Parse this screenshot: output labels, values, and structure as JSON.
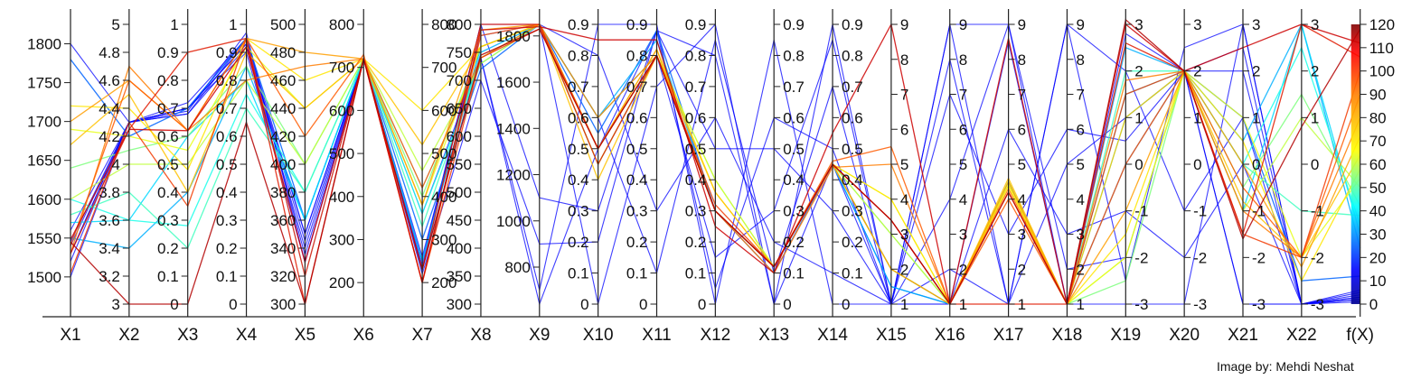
{
  "credit": "Image by: Mehdi Neshat",
  "chart_data": {
    "type": "parallel_coordinates",
    "title": "",
    "axes": [
      {
        "label": "X1",
        "ticks": [
          1500,
          1550,
          1600,
          1650,
          1700,
          1750,
          1800
        ],
        "range": [
          1465,
          1825
        ],
        "tick_side": "left"
      },
      {
        "label": "X2",
        "ticks": [
          3,
          3.2,
          3.4,
          3.6,
          3.8,
          4,
          4.2,
          4.4,
          4.6,
          4.8,
          5
        ],
        "range": [
          3,
          5
        ],
        "tick_side": "left"
      },
      {
        "label": "X3",
        "ticks": [
          0,
          0.1,
          0.2,
          0.3,
          0.4,
          0.5,
          0.6,
          0.7,
          0.8,
          0.9,
          1
        ],
        "range": [
          0,
          1
        ],
        "tick_side": "left"
      },
      {
        "label": "X4",
        "ticks": [
          0,
          0.1,
          0.2,
          0.3,
          0.4,
          0.5,
          0.6,
          0.7,
          0.8,
          0.9,
          1
        ],
        "range": [
          0,
          1
        ],
        "tick_side": "left"
      },
      {
        "label": "X5",
        "ticks": [
          300,
          320,
          340,
          360,
          380,
          400,
          420,
          440,
          460,
          480,
          500
        ],
        "range": [
          300,
          500
        ],
        "tick_side": "left"
      },
      {
        "label": "X6",
        "ticks": [
          200,
          300,
          400,
          500,
          600,
          700,
          800
        ],
        "range": [
          150,
          800
        ],
        "tick_side": "left"
      },
      {
        "label": "X7",
        "ticks": [
          200,
          300,
          400,
          500,
          600,
          700,
          800
        ],
        "range": [
          150,
          800
        ],
        "tick_side": "right"
      },
      {
        "label": "X8",
        "ticks": [
          300,
          350,
          400,
          450,
          500,
          550,
          600,
          650,
          700,
          750,
          800
        ],
        "range": [
          300,
          800
        ],
        "tick_side": "left"
      },
      {
        "label": "X9",
        "ticks": [
          800,
          1000,
          1200,
          1400,
          1600,
          1800
        ],
        "range": [
          640,
          1850
        ],
        "tick_side": "left"
      },
      {
        "label": "X10",
        "ticks": [
          0,
          0.1,
          0.2,
          0.3,
          0.4,
          0.5,
          0.6,
          0.7,
          0.8,
          0.9
        ],
        "range": [
          0,
          0.9
        ],
        "tick_side": "left"
      },
      {
        "label": "X11",
        "ticks": [
          0,
          0.1,
          0.2,
          0.3,
          0.4,
          0.5,
          0.6,
          0.7,
          0.8,
          0.9
        ],
        "range": [
          0,
          0.9
        ],
        "tick_side": "left"
      },
      {
        "label": "X12",
        "ticks": [
          0,
          0.1,
          0.2,
          0.3,
          0.4,
          0.5,
          0.6,
          0.7,
          0.8,
          0.9
        ],
        "range": [
          0,
          0.9
        ],
        "tick_side": "left"
      },
      {
        "label": "X13",
        "ticks": [
          0,
          0.1,
          0.2,
          0.3,
          0.4,
          0.5,
          0.6,
          0.7,
          0.8,
          0.9
        ],
        "range": [
          0,
          0.9
        ],
        "tick_side": "right"
      },
      {
        "label": "X14",
        "ticks": [
          0,
          0.1,
          0.2,
          0.3,
          0.4,
          0.5,
          0.6,
          0.7,
          0.8,
          0.9
        ],
        "range": [
          0,
          0.9
        ],
        "tick_side": "right"
      },
      {
        "label": "X15",
        "ticks": [
          1,
          2,
          3,
          4,
          5,
          6,
          7,
          8,
          9
        ],
        "range": [
          1,
          9
        ],
        "tick_side": "right"
      },
      {
        "label": "X16",
        "ticks": [
          1,
          2,
          3,
          4,
          5,
          6,
          7,
          8,
          9
        ],
        "range": [
          1,
          9
        ],
        "tick_side": "right"
      },
      {
        "label": "X17",
        "ticks": [
          1,
          2,
          3,
          4,
          5,
          6,
          7,
          8,
          9
        ],
        "range": [
          1,
          9
        ],
        "tick_side": "right"
      },
      {
        "label": "X18",
        "ticks": [
          1,
          2,
          3,
          4,
          5,
          6,
          7,
          8,
          9
        ],
        "range": [
          1,
          9
        ],
        "tick_side": "right"
      },
      {
        "label": "X19",
        "ticks": [
          -3,
          -2,
          -1,
          0,
          1,
          2,
          3
        ],
        "range": [
          -3,
          3
        ],
        "tick_side": "right"
      },
      {
        "label": "X20",
        "ticks": [
          -3,
          -2,
          -1,
          0,
          1,
          2,
          3
        ],
        "range": [
          -3,
          3
        ],
        "tick_side": "right"
      },
      {
        "label": "X21",
        "ticks": [
          -3,
          -2,
          -1,
          0,
          1,
          2,
          3
        ],
        "range": [
          -3,
          3
        ],
        "tick_side": "right"
      },
      {
        "label": "X22",
        "ticks": [
          -3,
          -2,
          -1,
          0,
          1,
          2,
          3
        ],
        "range": [
          -3,
          3
        ],
        "tick_side": "right"
      },
      {
        "label": "f(X)",
        "ticks": [
          0,
          10,
          20,
          30,
          40,
          50,
          60,
          70,
          80,
          90,
          100,
          110,
          120
        ],
        "range": [
          0,
          120
        ],
        "tick_side": "right"
      }
    ],
    "series": [
      {
        "color": "#b30000",
        "values": [
          1545,
          3.0,
          0.0,
          0.65,
          300,
          720,
          230,
          745,
          1830,
          0.5,
          0.8,
          0.3,
          0.12,
          0.45,
          3.4,
          1.0,
          4.2,
          1.0,
          3.1,
          2.0,
          -1.6,
          0.8,
          118
        ]
      },
      {
        "color": "#cc0000",
        "values": [
          1548,
          4.25,
          0.62,
          0.92,
          330,
          720,
          200,
          790,
          1840,
          0.85,
          0.85,
          0.25,
          0.1,
          0.55,
          9.0,
          1.0,
          8.6,
          1.0,
          3.0,
          2.0,
          2.5,
          3.0,
          112
        ]
      },
      {
        "color": "#e01a00",
        "values": [
          1530,
          4.25,
          0.9,
          0.95,
          300,
          720,
          230,
          800,
          1850,
          0.45,
          0.8,
          0.3,
          0.12,
          0.45,
          3.4,
          1.0,
          1.0,
          1.0,
          2.6,
          2.0,
          -1.5,
          3.0,
          106
        ]
      },
      {
        "color": "#f23a00",
        "values": [
          1505,
          4.3,
          0.35,
          0.95,
          320,
          720,
          200,
          740,
          1830,
          0.5,
          0.8,
          0.32,
          0.12,
          0.45,
          3.4,
          1.0,
          4.2,
          1.0,
          1.5,
          2.0,
          -1.5,
          -2.0,
          100
        ]
      },
      {
        "color": "#ff5a00",
        "values": [
          1540,
          4.6,
          0.62,
          0.95,
          420,
          730,
          200,
          780,
          1850,
          0.5,
          0.8,
          0.3,
          0.12,
          0.46,
          5.5,
          1.0,
          4.0,
          1.0,
          0.0,
          2.0,
          -0.5,
          -2.0,
          90
        ]
      },
      {
        "color": "#ff7d00",
        "values": [
          1530,
          4.7,
          0.62,
          0.8,
          470,
          720,
          420,
          740,
          1850,
          0.6,
          0.8,
          0.3,
          0.1,
          0.44,
          5.0,
          1.0,
          4.3,
          1.0,
          1.8,
          2.0,
          -1.0,
          -2.0,
          80
        ]
      },
      {
        "color": "#ff9f00",
        "values": [
          1700,
          4.6,
          0.62,
          0.95,
          480,
          720,
          380,
          790,
          1850,
          0.5,
          0.82,
          0.3,
          0.12,
          0.45,
          2.0,
          1.0,
          4.5,
          1.0,
          -1.0,
          2.0,
          0.0,
          -2.2,
          72
        ]
      },
      {
        "color": "#ffc200",
        "values": [
          1670,
          4.5,
          0.4,
          0.9,
          440,
          720,
          520,
          760,
          1850,
          0.4,
          0.8,
          0.36,
          0.12,
          0.45,
          2.0,
          1.0,
          4.6,
          1.0,
          1.0,
          2.0,
          -0.8,
          -2.0,
          64
        ]
      },
      {
        "color": "#ffe600",
        "values": [
          1720,
          4.4,
          0.48,
          0.95,
          460,
          720,
          600,
          760,
          1850,
          0.5,
          0.82,
          0.36,
          0.12,
          0.45,
          4.0,
          1.0,
          4.4,
          1.0,
          -1.5,
          2.0,
          0.5,
          -2.5,
          58
        ]
      },
      {
        "color": "#e8ff1a",
        "values": [
          1690,
          4.2,
          0.55,
          0.92,
          440,
          720,
          380,
          760,
          1850,
          0.45,
          0.8,
          0.4,
          0.12,
          0.45,
          4.0,
          1.0,
          4.4,
          1.0,
          -2.0,
          2.0,
          1.0,
          -2.0,
          54
        ]
      },
      {
        "color": "#c0ff3f",
        "values": [
          1600,
          4.0,
          0.5,
          0.8,
          400,
          720,
          460,
          730,
          1850,
          0.5,
          0.8,
          0.3,
          0.12,
          0.45,
          3.0,
          1.0,
          4.5,
          1.0,
          -2.0,
          2.0,
          -1.0,
          1.0,
          50
        ]
      },
      {
        "color": "#7dff7d",
        "values": [
          1640,
          4.1,
          0.6,
          0.85,
          400,
          720,
          400,
          760,
          1850,
          0.5,
          0.8,
          0.3,
          0.12,
          0.45,
          3.0,
          1.0,
          4.5,
          1.0,
          -2.5,
          2.0,
          -0.5,
          1.5,
          42
        ]
      },
      {
        "color": "#3fffbf",
        "values": [
          1580,
          3.8,
          0.2,
          0.7,
          380,
          720,
          330,
          740,
          1850,
          0.6,
          0.8,
          0.4,
          0.12,
          0.45,
          2.0,
          1.0,
          4.5,
          1.0,
          2.0,
          2.0,
          0.0,
          -1.0,
          38
        ]
      },
      {
        "color": "#1affea",
        "values": [
          1600,
          3.6,
          0.28,
          0.75,
          380,
          720,
          360,
          730,
          1850,
          0.45,
          0.8,
          0.3,
          0.12,
          0.45,
          2.0,
          1.0,
          4.5,
          1.0,
          1.0,
          2.0,
          0.0,
          2.5,
          34
        ]
      },
      {
        "color": "#00d8ff",
        "values": [
          1570,
          3.6,
          0.6,
          0.8,
          360,
          720,
          250,
          760,
          1850,
          0.5,
          0.8,
          0.3,
          0.12,
          0.45,
          2.0,
          1.0,
          4.5,
          1.0,
          1.5,
          2.0,
          -1.0,
          3.0,
          30
        ]
      },
      {
        "color": "#00b0ff",
        "values": [
          1550,
          3.4,
          0.4,
          0.85,
          360,
          720,
          230,
          750,
          1850,
          0.6,
          0.85,
          0.3,
          0.12,
          0.45,
          1.5,
          1.0,
          4.5,
          1.0,
          2.5,
          2.0,
          0.5,
          3.0,
          24
        ]
      },
      {
        "color": "#0064ff",
        "values": [
          1780,
          4.2,
          0.7,
          0.95,
          360,
          720,
          300,
          720,
          1850,
          0.55,
          0.88,
          0.3,
          0.1,
          0.45,
          1.5,
          1.0,
          4.5,
          1.0,
          0.0,
          2.0,
          1.0,
          -2.5,
          12
        ]
      },
      {
        "color": "#0000ff",
        "values": [
          1530,
          4.3,
          0.7,
          0.93,
          350,
          720,
          420,
          740,
          640,
          0.5,
          0.88,
          0.8,
          0.0,
          0.45,
          1.0,
          2.0,
          1.0,
          9.0,
          -2.5,
          2.5,
          3.0,
          -3.0,
          3
        ]
      },
      {
        "color": "#0000ff",
        "values": [
          1500,
          4.3,
          0.68,
          0.95,
          320,
          720,
          260,
          780,
          1850,
          0.0,
          0.7,
          0.9,
          0.0,
          0.9,
          1.0,
          9.0,
          9.0,
          1.0,
          -3.0,
          -3.0,
          3.0,
          -3.0,
          2
        ]
      },
      {
        "color": "#0000ff",
        "values": [
          1530,
          4.3,
          0.7,
          0.9,
          330,
          720,
          360,
          740,
          700,
          0.9,
          0.9,
          0.0,
          0.85,
          0.0,
          1.0,
          1.0,
          8.5,
          1.0,
          2.8,
          2.0,
          -3.0,
          -3.0,
          5
        ]
      },
      {
        "color": "#0000ff",
        "values": [
          1545,
          4.3,
          0.68,
          0.92,
          340,
          720,
          250,
          800,
          1850,
          0.45,
          0.8,
          0.15,
          0.3,
          0.85,
          1.0,
          9.0,
          1.0,
          9.0,
          2.0,
          -1.0,
          1.0,
          -3.0,
          1
        ]
      },
      {
        "color": "#0000ff",
        "values": [
          1800,
          4.3,
          0.72,
          0.95,
          350,
          720,
          230,
          800,
          1850,
          0.8,
          0.3,
          0.6,
          0.2,
          0.1,
          1.0,
          4.0,
          9.0,
          2.0,
          -2.0,
          2.0,
          -3.0,
          -3.0,
          4
        ]
      },
      {
        "color": "#0000ff",
        "values": [
          1520,
          4.3,
          0.69,
          0.97,
          330,
          720,
          220,
          700,
          900,
          0.2,
          0.88,
          0.5,
          0.5,
          0.3,
          1.0,
          7.0,
          3.0,
          6.0,
          0.5,
          2.0,
          2.0,
          -3.0,
          6
        ]
      },
      {
        "color": "#0000ff",
        "values": [
          1560,
          4.3,
          0.7,
          0.93,
          345,
          720,
          250,
          760,
          1850,
          0.6,
          0.1,
          0.85,
          0.1,
          0.7,
          1.0,
          1.0,
          6.0,
          3.0,
          -1.0,
          -2.0,
          0.0,
          -3.0,
          3
        ]
      },
      {
        "color": "#0000ff",
        "values": [
          1540,
          4.3,
          0.7,
          0.95,
          335,
          720,
          240,
          800,
          1100,
          0.3,
          0.88,
          0.05,
          0.6,
          0.5,
          1.0,
          8.0,
          1.0,
          5.0,
          1.0,
          2.0,
          2.5,
          -3.0,
          2
        ]
      }
    ]
  }
}
